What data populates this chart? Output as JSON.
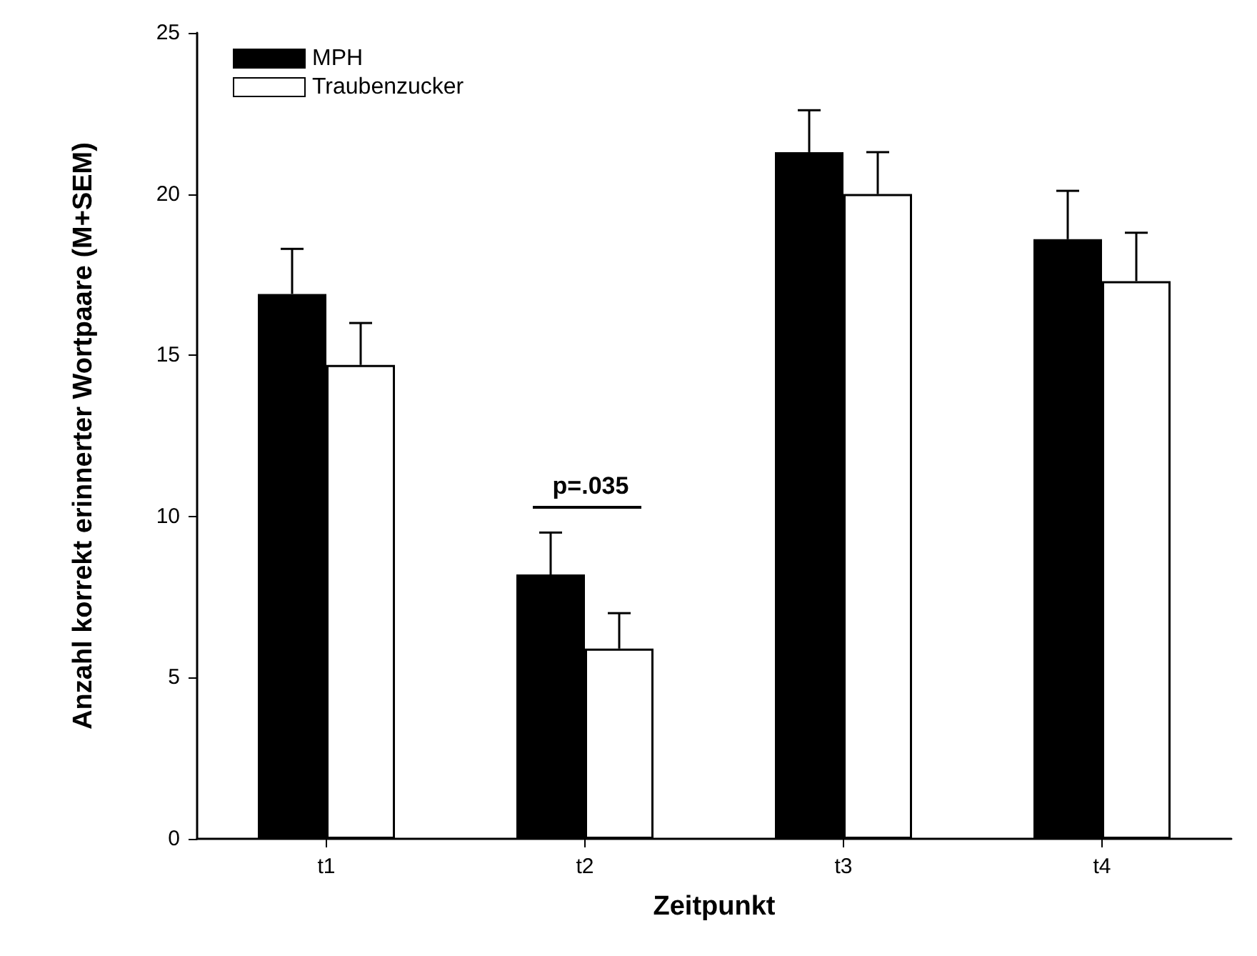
{
  "chart_data": {
    "type": "bar",
    "xlabel": "Zeitpunkt",
    "ylabel": "Anzahl korrekt erinnerter Wortpaare (M+SEM)",
    "categories": [
      "t1",
      "t2",
      "t3",
      "t4"
    ],
    "series": [
      {
        "name": "MPH",
        "color": "#000000",
        "values": [
          16.9,
          8.2,
          21.3,
          18.6
        ],
        "errors": [
          [
            16.9,
            18.3
          ],
          [
            8.2,
            9.5
          ],
          [
            21.3,
            22.6
          ],
          [
            18.6,
            20.1
          ]
        ]
      },
      {
        "name": "Traubenzucker",
        "color": "#ffffff",
        "values": [
          14.7,
          5.9,
          20.0,
          17.3
        ],
        "errors": [
          [
            14.7,
            16.0
          ],
          [
            5.9,
            7.0
          ],
          [
            20.0,
            21.3
          ],
          [
            17.3,
            18.8
          ]
        ]
      }
    ],
    "ylim": [
      0,
      25
    ],
    "yticks": [
      0,
      5,
      10,
      15,
      20,
      25
    ],
    "grid": false,
    "legend": "top left",
    "annotations": [
      "p=.035"
    ]
  }
}
